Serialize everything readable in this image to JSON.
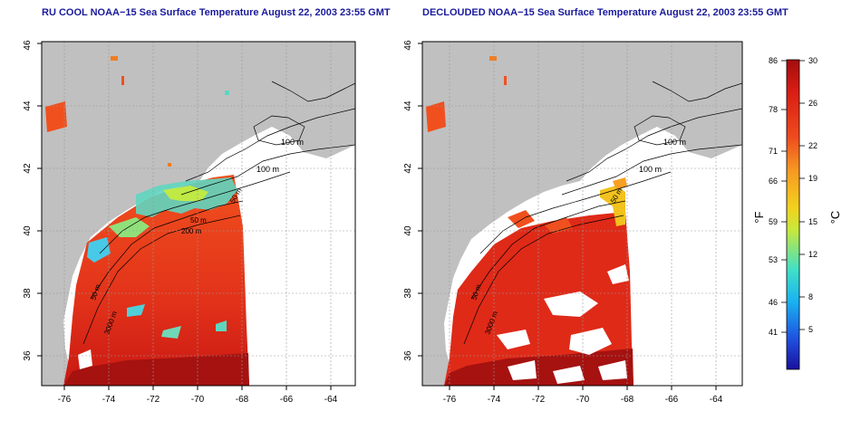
{
  "left_panel": {
    "title": "RU COOL NOAA−15 Sea Surface Temperature August 22, 2003 23:55 GMT",
    "contour_labels": [
      "100 m",
      "100 m",
      "50 m",
      "50 m",
      "200 m",
      "50 m",
      "3000 m"
    ]
  },
  "right_panel": {
    "title": "DECLOUDED NOAA−15 Sea Surface Temperature August 22, 2003 23:55 GMT",
    "contour_labels": [
      "100 m",
      "100 m",
      "50 m",
      "3000 m",
      "50 m"
    ]
  },
  "map_axes": {
    "x_ticks": [
      "-76",
      "-74",
      "-72",
      "-70",
      "-68",
      "-66",
      "-64"
    ],
    "y_ticks": [
      "36",
      "38",
      "40",
      "42",
      "44",
      "46"
    ]
  },
  "colorbar": {
    "fahrenheit_label": "°F",
    "celsius_label": "°C",
    "fahrenheit_ticks": [
      "86",
      "78",
      "71",
      "66",
      "59",
      "53",
      "46",
      "41"
    ],
    "celsius_ticks": [
      "30",
      "26",
      "22",
      "19",
      "15",
      "12",
      "8",
      "5"
    ],
    "colors": [
      "#1a0f9e",
      "#1f52e0",
      "#19b3f0",
      "#3fe0c8",
      "#c7e83c",
      "#f2d21e",
      "#f79a22",
      "#ef4b1e",
      "#d81c14",
      "#a30d0d"
    ]
  }
}
